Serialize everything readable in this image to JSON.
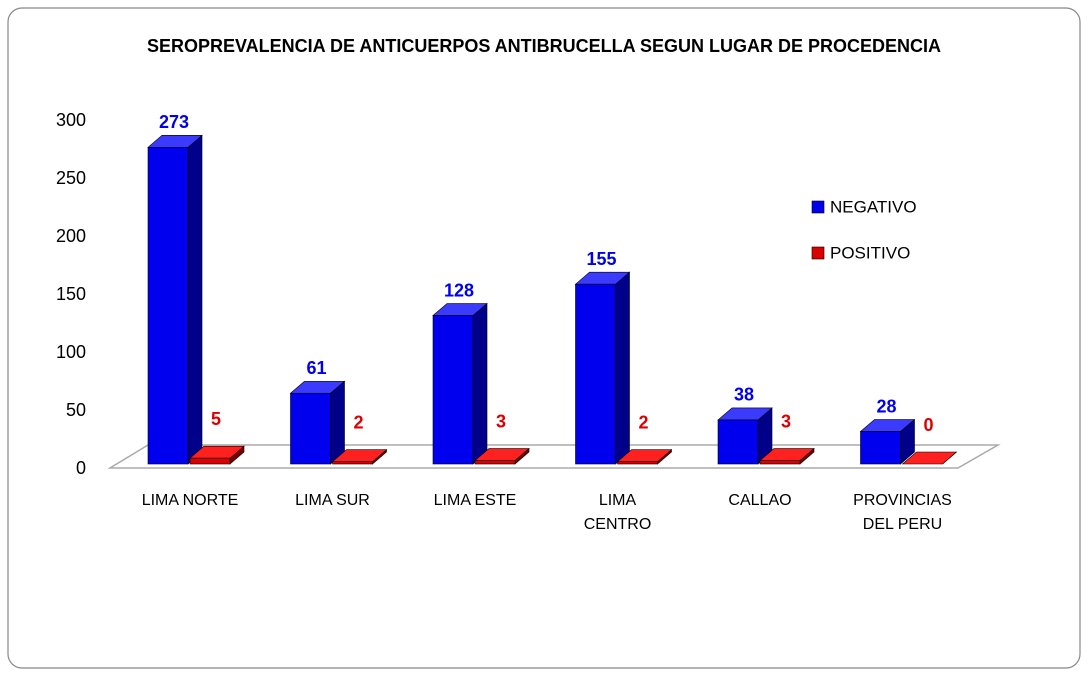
{
  "chart_data": {
    "type": "bar3d",
    "title": "SEROPREVALENCIA DE ANTICUERPOS ANTIBRUCELLA SEGUN LUGAR DE PROCEDENCIA",
    "categories": [
      "LIMA NORTE",
      "LIMA SUR",
      "LIMA ESTE",
      "LIMA CENTRO",
      "CALLAO",
      "PROVINCIAS DEL PERU"
    ],
    "series": [
      {
        "name": "NEGATIVO",
        "color": "#0000ee",
        "values": [
          273,
          61,
          128,
          155,
          38,
          28
        ]
      },
      {
        "name": "POSITIVO",
        "color": "#dd0000",
        "values": [
          5,
          2,
          3,
          2,
          3,
          0
        ]
      }
    ],
    "ylim": [
      0,
      300
    ],
    "yticks": [
      0,
      50,
      100,
      150,
      200,
      250,
      300
    ],
    "legend": "right"
  }
}
